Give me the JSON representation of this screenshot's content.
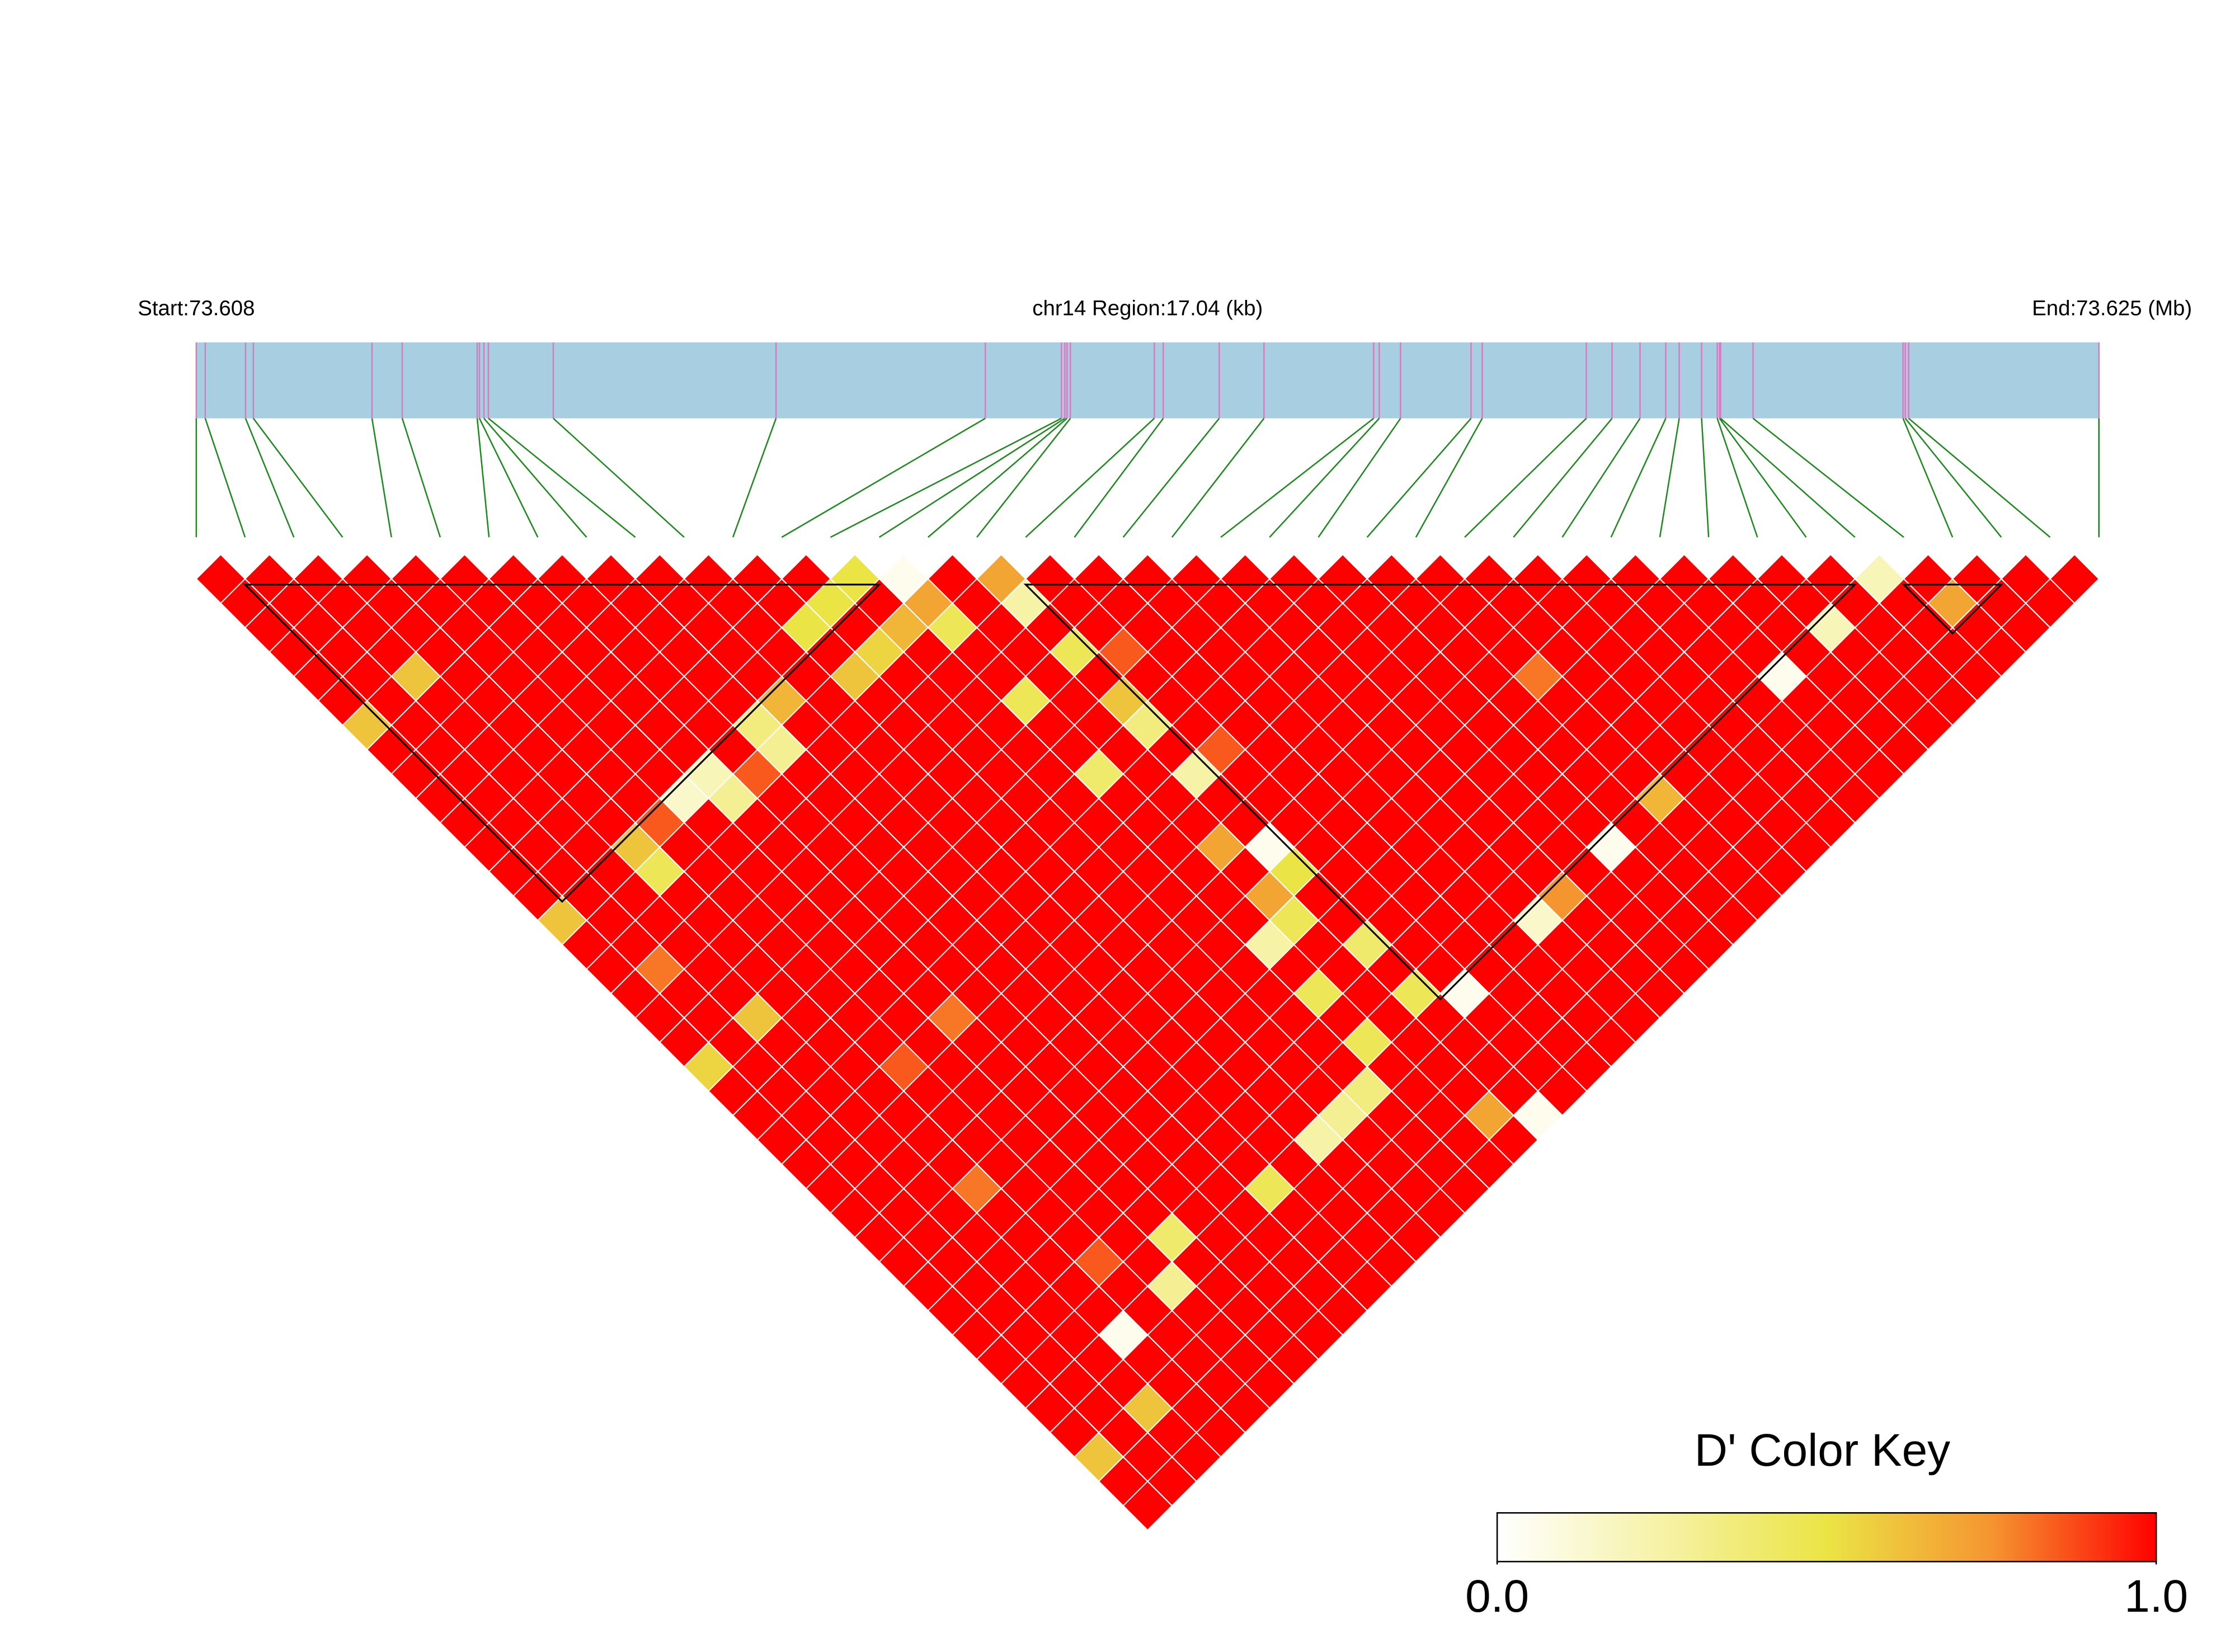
{
  "chart_data": {
    "type": "heatmap",
    "start_label": "Start:73.608",
    "region_label": "chr14 Region:17.04 (kb)",
    "end_label": "End:73.625 (Mb)",
    "xlim": [
      73.608,
      73.625
    ],
    "bar_color": "#a8cee2",
    "snp_line_color": "#d27fc2",
    "connector_color": "#1f8a1f",
    "positions": [
      73.608,
      73.60808,
      73.60844,
      73.60851,
      73.60957,
      73.60984,
      73.61051,
      73.61053,
      73.61057,
      73.61061,
      73.61119,
      73.61318,
      73.61505,
      73.61573,
      73.61576,
      73.61578,
      73.61581,
      73.61656,
      73.61664,
      73.61714,
      73.61754,
      73.61852,
      73.61857,
      73.61876,
      73.61939,
      73.61949,
      73.62042,
      73.62065,
      73.6209,
      73.62113,
      73.62125,
      73.62145,
      73.62159,
      73.62161,
      73.62162,
      73.62191,
      73.62325,
      73.62327,
      73.6233,
      73.625
    ],
    "dprime": [
      [
        1,
        1,
        1,
        1,
        1,
        1,
        1,
        1,
        1,
        1,
        1,
        1,
        1,
        0.5,
        0.05,
        1,
        0.7,
        1,
        1,
        1,
        1,
        1,
        1,
        1,
        1,
        1,
        1,
        1,
        1,
        1,
        1,
        1,
        1,
        1,
        0.2,
        1,
        1,
        1,
        1
      ],
      [
        1,
        1,
        1,
        1,
        1,
        1,
        1,
        1,
        1,
        1,
        1,
        1,
        0.5,
        1,
        0.7,
        1,
        0.25,
        1,
        1,
        1,
        1,
        1,
        1,
        1,
        1,
        1,
        1,
        1,
        1,
        1,
        1,
        1,
        1,
        1,
        1,
        0.7,
        1,
        1
      ],
      [
        1,
        1,
        1,
        1,
        1,
        1,
        1,
        1,
        1,
        1,
        1,
        0.5,
        1,
        0.65,
        0.45,
        1,
        1,
        1,
        1,
        1,
        1,
        1,
        1,
        1,
        1,
        1,
        1,
        1,
        1,
        1,
        1,
        1,
        0.2,
        1,
        1,
        1,
        1
      ],
      [
        1,
        1,
        1,
        1,
        1,
        1,
        1,
        1,
        1,
        1,
        1,
        1,
        0.55,
        1,
        1,
        1,
        0.45,
        0.85,
        1,
        1,
        1,
        1,
        1,
        1,
        1,
        1,
        1,
        1,
        1,
        1,
        1,
        1,
        1,
        1,
        1,
        1
      ],
      [
        1,
        1,
        0.6,
        1,
        1,
        1,
        1,
        1,
        1,
        1,
        1,
        0.6,
        1,
        1,
        1,
        1,
        1,
        1,
        1,
        1,
        1,
        1,
        1,
        1,
        1,
        0.8,
        1,
        1,
        1,
        1,
        0.05,
        1,
        1,
        1,
        1
      ],
      [
        1,
        1,
        1,
        1,
        1,
        1,
        1,
        1,
        1,
        0.65,
        1,
        1,
        1,
        1,
        0.45,
        1,
        0.6,
        1,
        1,
        1,
        1,
        1,
        1,
        1,
        1,
        1,
        1,
        1,
        1,
        1,
        1,
        1,
        1,
        1
      ],
      [
        0.6,
        1,
        1,
        1,
        1,
        1,
        1,
        1,
        0.35,
        1,
        1,
        1,
        1,
        1,
        1,
        1,
        0.35,
        1,
        1,
        1,
        1,
        1,
        1,
        1,
        1,
        1,
        1,
        1,
        1,
        1,
        1,
        1,
        1
      ],
      [
        1,
        1,
        1,
        1,
        1,
        1,
        1,
        1,
        0.3,
        1,
        1,
        1,
        1,
        1,
        1,
        1,
        1,
        0.85,
        1,
        1,
        1,
        1,
        1,
        1,
        1,
        1,
        1,
        1,
        1,
        1,
        1,
        1
      ],
      [
        1,
        1,
        1,
        1,
        1,
        1,
        0.2,
        0.85,
        1,
        1,
        1,
        1,
        1,
        1,
        0.4,
        1,
        0.25,
        1,
        1,
        1,
        1,
        1,
        1,
        1,
        1,
        1,
        1,
        1,
        1,
        1,
        1
      ],
      [
        1,
        1,
        1,
        1,
        1,
        0.15,
        0.3,
        1,
        1,
        1,
        1,
        1,
        1,
        1,
        1,
        1,
        1,
        1,
        1,
        1,
        1,
        1,
        1,
        1,
        1,
        0.65,
        1,
        1,
        1,
        1
      ],
      [
        1,
        1,
        1,
        1,
        0.85,
        1,
        1,
        1,
        1,
        1,
        1,
        1,
        1,
        1,
        1,
        1,
        1,
        1,
        1,
        1,
        1,
        1,
        1,
        1,
        1,
        1,
        1,
        1,
        1
      ],
      [
        1,
        1,
        1,
        0.6,
        1,
        1,
        1,
        1,
        1,
        1,
        1,
        1,
        1,
        1,
        1,
        0.7,
        0.05,
        1,
        1,
        1,
        1,
        1,
        1,
        0.05,
        1,
        1,
        1,
        1
      ],
      [
        1,
        1,
        1,
        0.45,
        1,
        1,
        1,
        1,
        1,
        1,
        1,
        1,
        1,
        1,
        1,
        1,
        0.5,
        1,
        1,
        1,
        1,
        1,
        1,
        1,
        1,
        1,
        1
      ],
      [
        1,
        1,
        1,
        1,
        1,
        1,
        1,
        1,
        1,
        1,
        1,
        1,
        1,
        1,
        1,
        0.7,
        1,
        1,
        1,
        1,
        1,
        0.75,
        1,
        1,
        1,
        1
      ],
      [
        0.6,
        1,
        1,
        1,
        1,
        1,
        1,
        1,
        1,
        1,
        1,
        1,
        1,
        1,
        1,
        0.45,
        1,
        1,
        1,
        1,
        0.15,
        1,
        1,
        1,
        1
      ],
      [
        1,
        1,
        1,
        1,
        1,
        1,
        1,
        1,
        1,
        1,
        1,
        1,
        1,
        1,
        0.25,
        1,
        0.4,
        1,
        1,
        1,
        1,
        1,
        1,
        1
      ],
      [
        1,
        0.8,
        1,
        1,
        1,
        1,
        1,
        1,
        1,
        1,
        1,
        1,
        1,
        1,
        1,
        1,
        1,
        1,
        1,
        1,
        1,
        1,
        1
      ],
      [
        1,
        1,
        1,
        1,
        1,
        1,
        1,
        1,
        1,
        1,
        1,
        1,
        1,
        1,
        0.45,
        1,
        0.45,
        0.05,
        1,
        1,
        1,
        1
      ],
      [
        1,
        1,
        0.6,
        1,
        1,
        1,
        0.8,
        1,
        1,
        1,
        1,
        1,
        1,
        1,
        1,
        1,
        1,
        1,
        1,
        1,
        1
      ],
      [
        1,
        1,
        1,
        1,
        1,
        1,
        1,
        1,
        1,
        1,
        1,
        1,
        1,
        1,
        0.45,
        1,
        1,
        1,
        1,
        1
      ],
      [
        0.55,
        1,
        1,
        1,
        0.85,
        1,
        1,
        1,
        1,
        1,
        1,
        1,
        1,
        1,
        1,
        1,
        1,
        1,
        1
      ],
      [
        1,
        1,
        1,
        1,
        1,
        1,
        1,
        1,
        1,
        1,
        1,
        1,
        1,
        0.35,
        1,
        1,
        1,
        1
      ],
      [
        1,
        1,
        1,
        1,
        1,
        1,
        1,
        1,
        1,
        1,
        1,
        1,
        0.3,
        1,
        1,
        0.7,
        0.05
      ],
      [
        1,
        1,
        1,
        1,
        1,
        1,
        1,
        1,
        1,
        1,
        1,
        0.25,
        1,
        1,
        1,
        1
      ],
      [
        1,
        1,
        1,
        1,
        1,
        1,
        1,
        1,
        1,
        1,
        1,
        1,
        1,
        1,
        1
      ],
      [
        1,
        1,
        1,
        0.8,
        1,
        1,
        1,
        1,
        1,
        0.45,
        1,
        1,
        1,
        1
      ],
      [
        1,
        1,
        1,
        1,
        1,
        1,
        1,
        1,
        1,
        1,
        1,
        1,
        1
      ],
      [
        1,
        1,
        1,
        1,
        1,
        1,
        0.4,
        1,
        1,
        1,
        1,
        1
      ],
      [
        1,
        1,
        1,
        1,
        0.85,
        1,
        1,
        1,
        1,
        1,
        1
      ],
      [
        1,
        1,
        1,
        1,
        1,
        0.3,
        1,
        1,
        1,
        1
      ],
      [
        1,
        1,
        1,
        1,
        1,
        1,
        1,
        1,
        1
      ],
      [
        1,
        1,
        1,
        0.05,
        1,
        1,
        1,
        1
      ],
      [
        1,
        1,
        1,
        1,
        1,
        1,
        1
      ],
      [
        1,
        1,
        1,
        1,
        1,
        1
      ],
      [
        1,
        1,
        0.6,
        1,
        1
      ],
      [
        1,
        1,
        1,
        1
      ],
      [
        0.6,
        1,
        1
      ],
      [
        1,
        1
      ],
      [
        1
      ]
    ],
    "blocks": [
      [
        1,
        14
      ],
      [
        17,
        34
      ],
      [
        35,
        37
      ]
    ],
    "color_key": {
      "title": "D' Color Key",
      "ticks": [
        {
          "value": 0,
          "label": "0.0"
        },
        {
          "value": 1,
          "label": "1.0"
        }
      ],
      "colors": [
        "#ffffff",
        "#f6f2a6",
        "#ebe445",
        "#f59530",
        "#ff0000"
      ]
    }
  }
}
